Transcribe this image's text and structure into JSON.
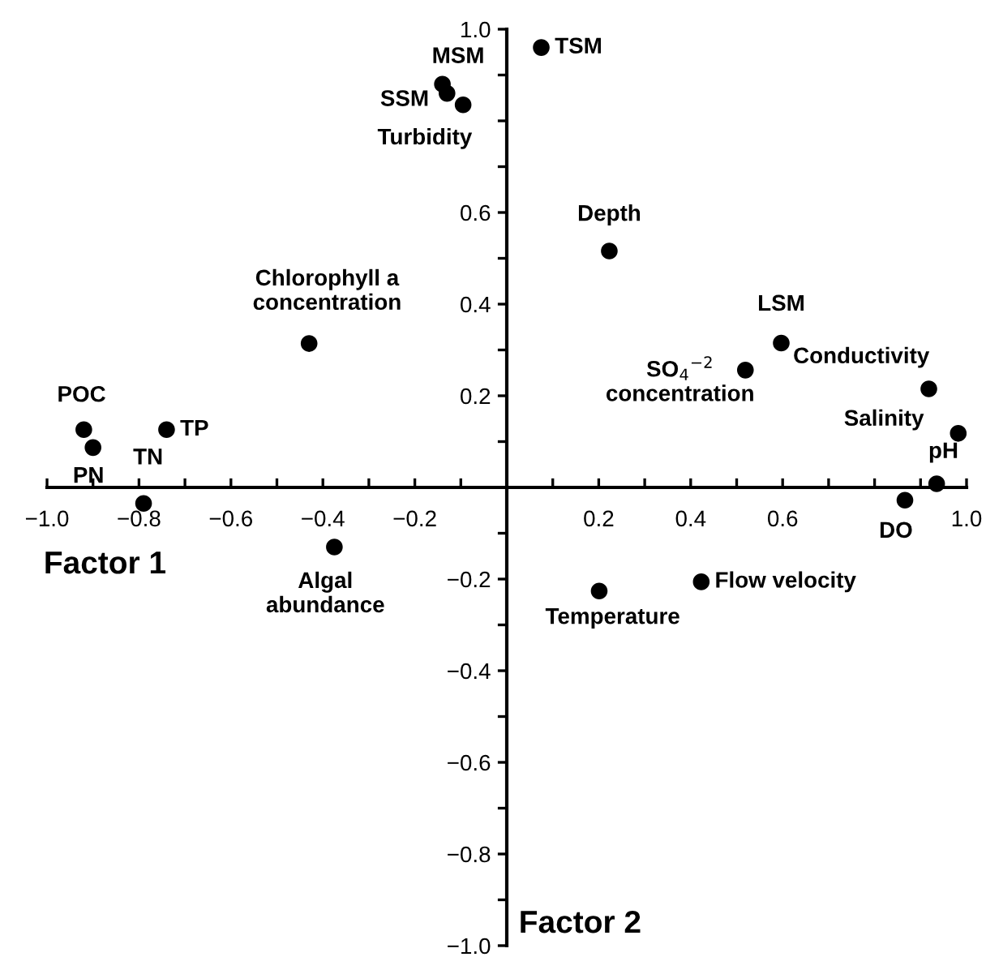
{
  "chart_data": {
    "type": "scatter",
    "xlabel": "Factor 1",
    "ylabel": "Factor 2",
    "color": "#000000",
    "marker": "circle",
    "grid": false,
    "legend": false,
    "x": [
      0.075,
      -0.14,
      -0.13,
      -0.095,
      -0.43,
      -0.92,
      -0.9,
      -0.74,
      -0.79,
      -0.375,
      0.223,
      0.597,
      0.519,
      0.918,
      0.982,
      0.935,
      0.866,
      0.201,
      0.423
    ],
    "values": [
      0.96,
      0.88,
      0.86,
      0.835,
      0.314,
      0.126,
      0.087,
      0.126,
      -0.035,
      -0.13,
      0.516,
      0.315,
      0.256,
      0.215,
      0.118,
      0.008,
      -0.028,
      -0.226,
      -0.206
    ],
    "annotations": [
      {
        "text": "TSM",
        "x": 0.075,
        "y": 0.96
      },
      {
        "text": "MSM",
        "x": -0.14,
        "y": 0.88
      },
      {
        "text": "SSM",
        "x": -0.13,
        "y": 0.86
      },
      {
        "text": "Turbidity",
        "x": -0.095,
        "y": 0.835
      },
      {
        "text": "Chlorophyll a\nconcentration",
        "x": -0.43,
        "y": 0.314
      },
      {
        "text": "POC",
        "x": -0.92,
        "y": 0.126
      },
      {
        "text": "PN",
        "x": -0.9,
        "y": 0.087
      },
      {
        "text": "TP",
        "x": -0.74,
        "y": 0.126
      },
      {
        "text": "TN",
        "x": -0.79,
        "y": -0.035
      },
      {
        "text": "Algal\nabundance",
        "x": -0.375,
        "y": -0.13
      },
      {
        "text": "Depth",
        "x": 0.223,
        "y": 0.516
      },
      {
        "text": "LSM",
        "x": 0.597,
        "y": 0.315
      },
      {
        "text": "SO$_{4}$$^{−2}$\nconcentration",
        "x": 0.519,
        "y": 0.256
      },
      {
        "text": "Conductivity",
        "x": 0.918,
        "y": 0.215
      },
      {
        "text": "Salinity",
        "x": 0.982,
        "y": 0.118
      },
      {
        "text": "pH",
        "x": 0.935,
        "y": 0.008
      },
      {
        "text": "DO",
        "x": 0.866,
        "y": -0.028
      },
      {
        "text": "Temperature",
        "x": 0.201,
        "y": -0.226
      },
      {
        "text": "Flow velocity",
        "x": 0.423,
        "y": -0.206
      }
    ],
    "xlim": [
      -1.0,
      1.0
    ],
    "ylim": [
      -1.0,
      1.0
    ],
    "xticks": [
      {
        "value": -1.0,
        "label": "−1.0"
      },
      {
        "value": -0.9,
        "label": null
      },
      {
        "value": -0.8,
        "label": "−0.8"
      },
      {
        "value": -0.7,
        "label": null
      },
      {
        "value": -0.6,
        "label": "−0.6"
      },
      {
        "value": -0.5,
        "label": null
      },
      {
        "value": -0.4,
        "label": "−0.4"
      },
      {
        "value": -0.3,
        "label": null
      },
      {
        "value": -0.2,
        "label": "−0.2"
      },
      {
        "value": -0.1,
        "label": null
      },
      {
        "value": 0,
        "label": null
      },
      {
        "value": 0.1,
        "label": null
      },
      {
        "value": 0.2,
        "label": "0.2"
      },
      {
        "value": 0.3,
        "label": null
      },
      {
        "value": 0.4,
        "label": "0.4"
      },
      {
        "value": 0.5,
        "label": null
      },
      {
        "value": 0.6,
        "label": "0.6"
      },
      {
        "value": 0.7,
        "label": null
      },
      {
        "value": 0.8,
        "label": null
      },
      {
        "value": 0.9,
        "label": null
      },
      {
        "value": 1.0,
        "label": "1.0"
      }
    ],
    "yticks": [
      {
        "value": -1.0,
        "label": "−1.0"
      },
      {
        "value": -0.9,
        "label": null
      },
      {
        "value": -0.8,
        "label": "−0.8"
      },
      {
        "value": -0.7,
        "label": null
      },
      {
        "value": -0.6,
        "label": "−0.6"
      },
      {
        "value": -0.5,
        "label": null
      },
      {
        "value": -0.4,
        "label": "−0.4"
      },
      {
        "value": -0.3,
        "label": null
      },
      {
        "value": -0.2,
        "label": "−0.2"
      },
      {
        "value": -0.1,
        "label": null
      },
      {
        "value": 0,
        "label": null
      },
      {
        "value": 0.1,
        "label": null
      },
      {
        "value": 0.2,
        "label": "0.2"
      },
      {
        "value": 0.3,
        "label": null
      },
      {
        "value": 0.4,
        "label": "0.4"
      },
      {
        "value": 0.5,
        "label": null
      },
      {
        "value": 0.6,
        "label": "0.6"
      },
      {
        "value": 0.7,
        "label": null
      },
      {
        "value": 0.8,
        "label": null
      },
      {
        "value": 0.9,
        "label": null
      },
      {
        "value": 1.0,
        "label": "1.0"
      }
    ]
  }
}
